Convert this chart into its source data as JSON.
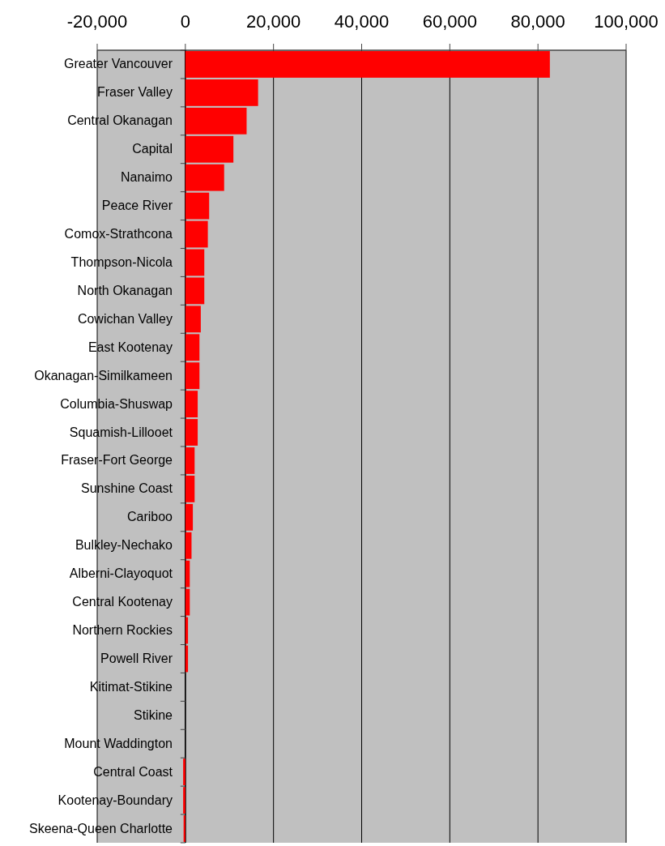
{
  "chart_data": {
    "type": "bar",
    "orientation": "horizontal",
    "categories": [
      "Greater Vancouver",
      "Fraser Valley",
      "Central Okanagan",
      "Capital",
      "Nanaimo",
      "Peace River",
      "Comox-Strathcona",
      "Thompson-Nicola",
      "North Okanagan",
      "Cowichan Valley",
      "East Kootenay",
      "Okanagan-Similkameen",
      "Columbia-Shuswap",
      "Squamish-Lillooet",
      "Fraser-Fort George",
      "Sunshine Coast",
      "Cariboo",
      "Bulkley-Nechako",
      "Alberni-Clayoquot",
      "Central Kootenay",
      "Northern Rockies",
      "Powell River",
      "Kitimat-Stikine",
      "Stikine",
      "Mount Waddington",
      "Central Coast",
      "Kootenay-Boundary",
      "Skeena-Queen Charlotte"
    ],
    "values": [
      82700,
      16500,
      13900,
      10900,
      8800,
      5400,
      5100,
      4300,
      4300,
      3500,
      3200,
      3200,
      2800,
      2800,
      2100,
      2100,
      1700,
      1400,
      1000,
      1000,
      600,
      600,
      0,
      0,
      0,
      -500,
      -500,
      -400
    ],
    "color": "#ff0000",
    "xlim": [
      -20000,
      100000
    ],
    "xticks": [
      {
        "value": -20000,
        "label": "-20,000"
      },
      0,
      {
        "value": 20000,
        "label": "20,000"
      },
      {
        "value": 40000,
        "label": "40,000"
      },
      {
        "value": 60000,
        "label": "60,000"
      },
      {
        "value": 80000,
        "label": "80,000"
      },
      {
        "value": 100000,
        "label": "100,000"
      }
    ],
    "grid": "x"
  }
}
